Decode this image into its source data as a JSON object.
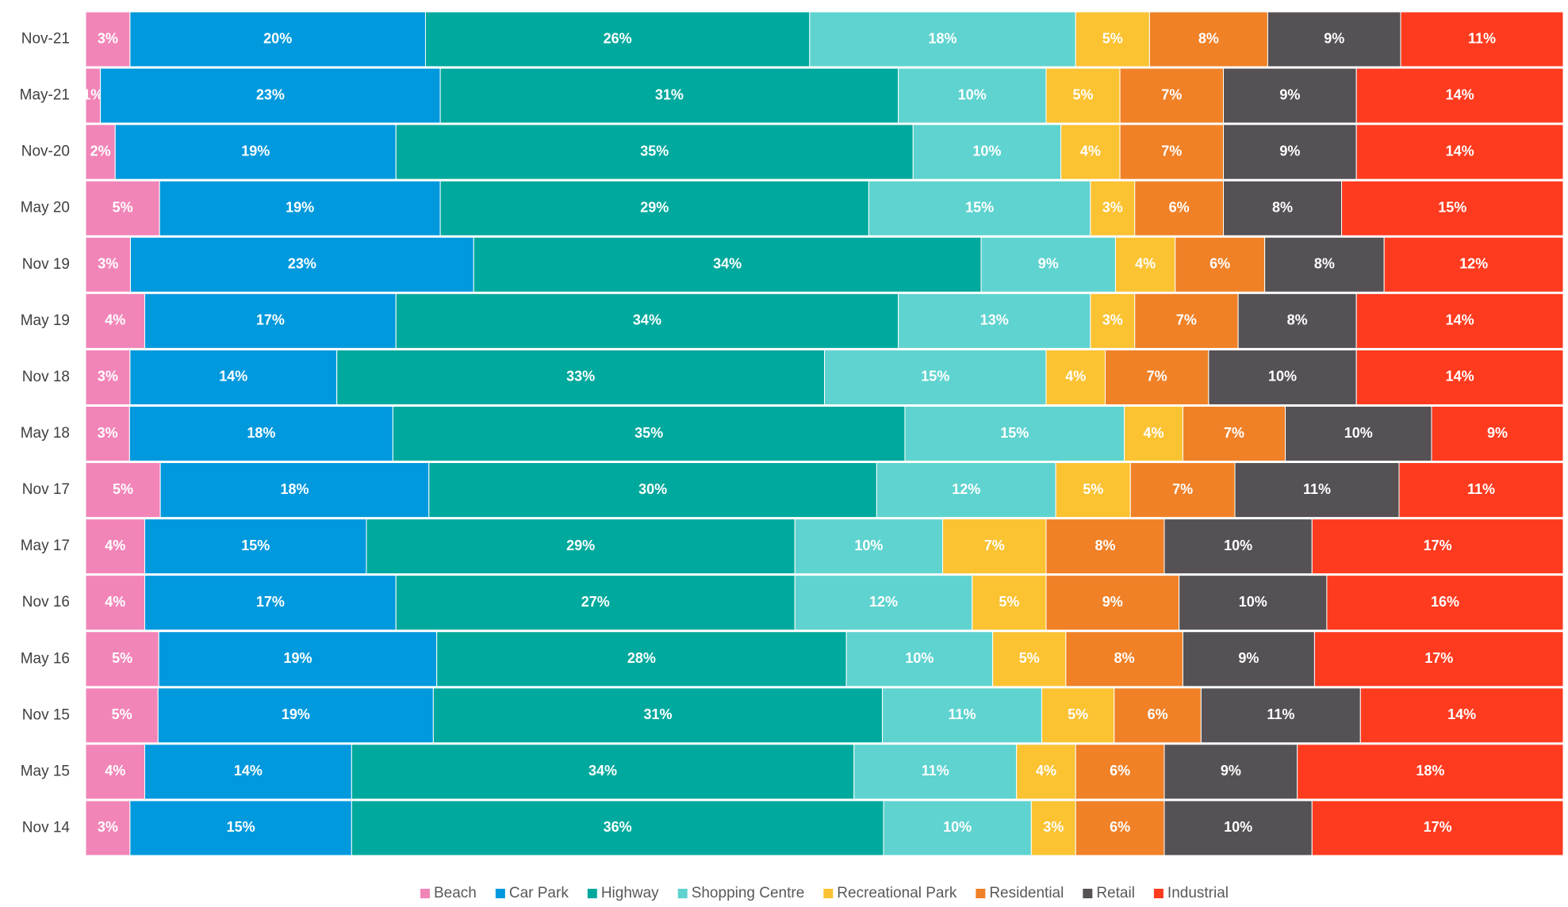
{
  "chart_data": {
    "type": "stacked_barh",
    "categories": [
      "Nov-21",
      "May-21",
      "Nov-20",
      "May 20",
      "Nov 19",
      "May 19",
      "Nov 18",
      "May 18",
      "Nov 17",
      "May 17",
      "Nov 16",
      "May 16",
      "Nov 15",
      "May 15",
      "Nov 14"
    ],
    "legend": "bottom",
    "series": [
      {
        "name": "Beach",
        "color": "#f285b8",
        "values": [
          3,
          1,
          2,
          5,
          3,
          4,
          3,
          3,
          5,
          4,
          4,
          5,
          5,
          4,
          3
        ],
        "value_labels": [
          "3%",
          "1%",
          "2%",
          "5%",
          "3%",
          "4%",
          "3%",
          "3%",
          "5%",
          "4%",
          "4%",
          "5%",
          "5%",
          "4%",
          "3%"
        ]
      },
      {
        "name": "Car Park",
        "color": "#0099dd",
        "values": [
          20,
          23,
          19,
          19,
          23,
          17,
          14,
          18,
          18,
          15,
          17,
          19,
          19,
          14,
          15
        ],
        "value_labels": [
          "20%",
          "23%",
          "19%",
          "19%",
          "23%",
          "17%",
          "14%",
          "18%",
          "18%",
          "15%",
          "17%",
          "19%",
          "19%",
          "14%",
          "15%"
        ]
      },
      {
        "name": "Highway",
        "color": "#00a99d",
        "values": [
          26,
          31,
          35,
          29,
          34,
          34,
          33,
          35,
          30,
          29,
          27,
          28,
          31,
          34,
          36
        ],
        "value_labels": [
          "26%",
          "31%",
          "35%",
          "29%",
          "34%",
          "34%",
          "33%",
          "35%",
          "30%",
          "29%",
          "27%",
          "28%",
          "31%",
          "34%",
          "36%"
        ]
      },
      {
        "name": "Shopping Centre",
        "color": "#5fd3cf",
        "values": [
          18,
          10,
          10,
          15,
          9,
          13,
          15,
          15,
          12,
          10,
          12,
          10,
          11,
          11,
          10
        ],
        "value_labels": [
          "18%",
          "10%",
          "10%",
          "15%",
          "9%",
          "13%",
          "15%",
          "15%",
          "12%",
          "10%",
          "12%",
          "10%",
          "11%",
          "11%",
          "10%"
        ]
      },
      {
        "name": "Recreational Park",
        "color": "#fbc232",
        "values": [
          5,
          5,
          4,
          3,
          4,
          3,
          4,
          4,
          5,
          7,
          5,
          5,
          5,
          4,
          3
        ],
        "value_labels": [
          "5%",
          "5%",
          "4%",
          "3%",
          "4%",
          "3%",
          "4%",
          "4%",
          "5%",
          "7%",
          "5%",
          "5%",
          "5%",
          "4%",
          "3%"
        ]
      },
      {
        "name": "Residential",
        "color": "#f08127",
        "values": [
          8,
          7,
          7,
          6,
          6,
          7,
          7,
          7,
          7,
          8,
          9,
          8,
          6,
          6,
          6
        ],
        "value_labels": [
          "8%",
          "7%",
          "7%",
          "6%",
          "6%",
          "7%",
          "7%",
          "7%",
          "7%",
          "8%",
          "9%",
          "8%",
          "6%",
          "6%",
          "6%"
        ]
      },
      {
        "name": "Retail",
        "color": "#555155",
        "values": [
          9,
          9,
          9,
          8,
          8,
          8,
          10,
          10,
          11,
          10,
          10,
          9,
          11,
          9,
          10
        ],
        "value_labels": [
          "9%",
          "9%",
          "9%",
          "8%",
          "8%",
          "8%",
          "10%",
          "10%",
          "11%",
          "10%",
          "10%",
          "9%",
          "11%",
          "9%",
          "10%"
        ]
      },
      {
        "name": "Industrial",
        "color": "#ff3b1f",
        "values": [
          11,
          14,
          14,
          15,
          12,
          14,
          14,
          9,
          11,
          17,
          16,
          17,
          14,
          18,
          17
        ],
        "value_labels": [
          "11%",
          "14%",
          "14%",
          "15%",
          "12%",
          "14%",
          "14%",
          "9%",
          "11%",
          "17%",
          "16%",
          "17%",
          "14%",
          "18%",
          "17%"
        ]
      }
    ]
  }
}
